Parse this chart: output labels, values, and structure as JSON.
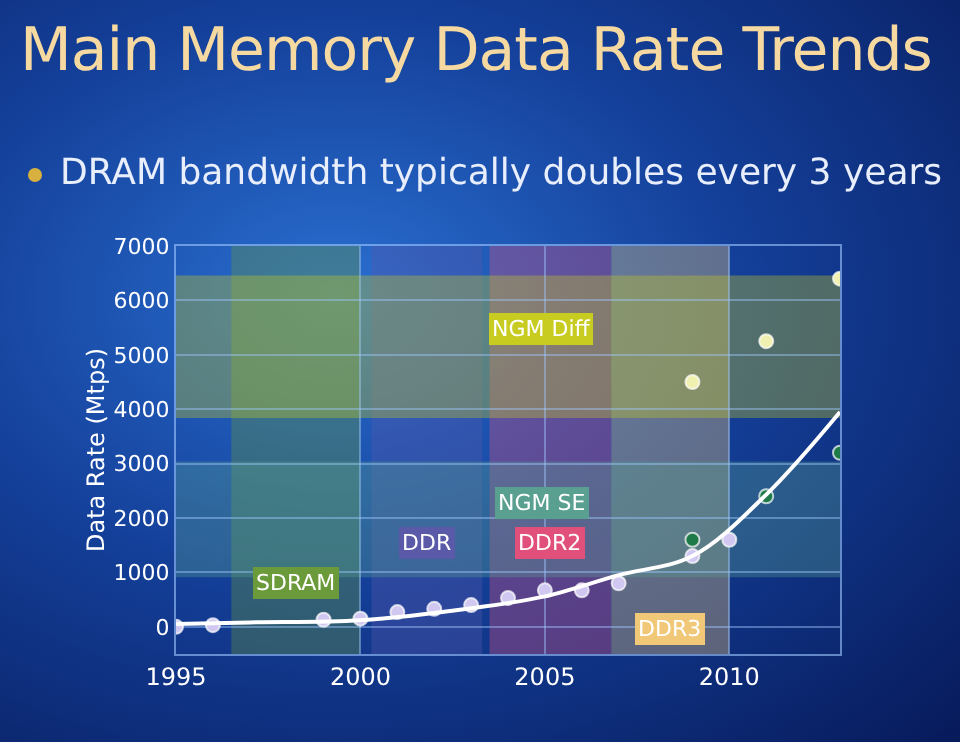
{
  "chart_data": {
    "type": "scatter",
    "title": "Main Memory Data Rate Trends",
    "subtitle": "DRAM bandwidth typically doubles every 3 years",
    "ylabel": "Data Rate (Mtps)",
    "xlim": [
      1995,
      2013
    ],
    "xticks": [
      1995,
      2000,
      2005,
      2010
    ],
    "ylim": [
      -500,
      7000
    ],
    "yticks": [
      0,
      1000,
      2000,
      3000,
      4000,
      5000,
      6000,
      7000
    ],
    "grid": true,
    "marker": "circle",
    "series": [
      {
        "color": "#d0c8f0",
        "x": [
          1995,
          1996,
          1999,
          2000,
          2001,
          2002,
          2003,
          2004,
          2005,
          2006,
          2007,
          2009,
          2010
        ],
        "values": [
          0,
          30,
          130,
          150,
          270,
          330,
          400,
          530,
          670,
          670,
          800,
          1300,
          1600
        ]
      },
      {
        "color": "#1f7a4a",
        "x": [
          2009,
          2011,
          2013
        ],
        "values": [
          1600,
          2400,
          3200
        ]
      },
      {
        "color": "#f0f0b0",
        "x": [
          2009,
          2011,
          2013
        ],
        "values": [
          4500,
          5250,
          6400
        ]
      },
      {
        "type": "line",
        "color": "#ffffff",
        "marker": "none",
        "x": [
          1995,
          1997,
          2000,
          2003,
          2005,
          2007,
          2009,
          2011,
          2013
        ],
        "values": [
          50,
          80,
          120,
          340,
          560,
          950,
          1300,
          2430,
          3950
        ]
      }
    ],
    "bands": [
      {
        "axis": "x",
        "from": 1996.5,
        "to": 2000,
        "label": "SDRAM",
        "color": "#6a9a3a"
      },
      {
        "axis": "x",
        "from": 2000.3,
        "to": 2003.3,
        "label": "DDR",
        "color": "#5a5aa8"
      },
      {
        "axis": "x",
        "from": 2003.5,
        "to": 2006.8,
        "label": "DDR2",
        "color": "#e0507a"
      },
      {
        "axis": "x",
        "from": 2006.8,
        "to": 2010,
        "label": "DDR3",
        "color": "#f0c878"
      },
      {
        "axis": "y",
        "from": 910,
        "to": 3040,
        "label": "NGM SE",
        "color": "#5aa090"
      },
      {
        "axis": "y",
        "from": 3840,
        "to": 6460,
        "label": "NGM Diff",
        "color": "#c8cc20"
      }
    ]
  }
}
